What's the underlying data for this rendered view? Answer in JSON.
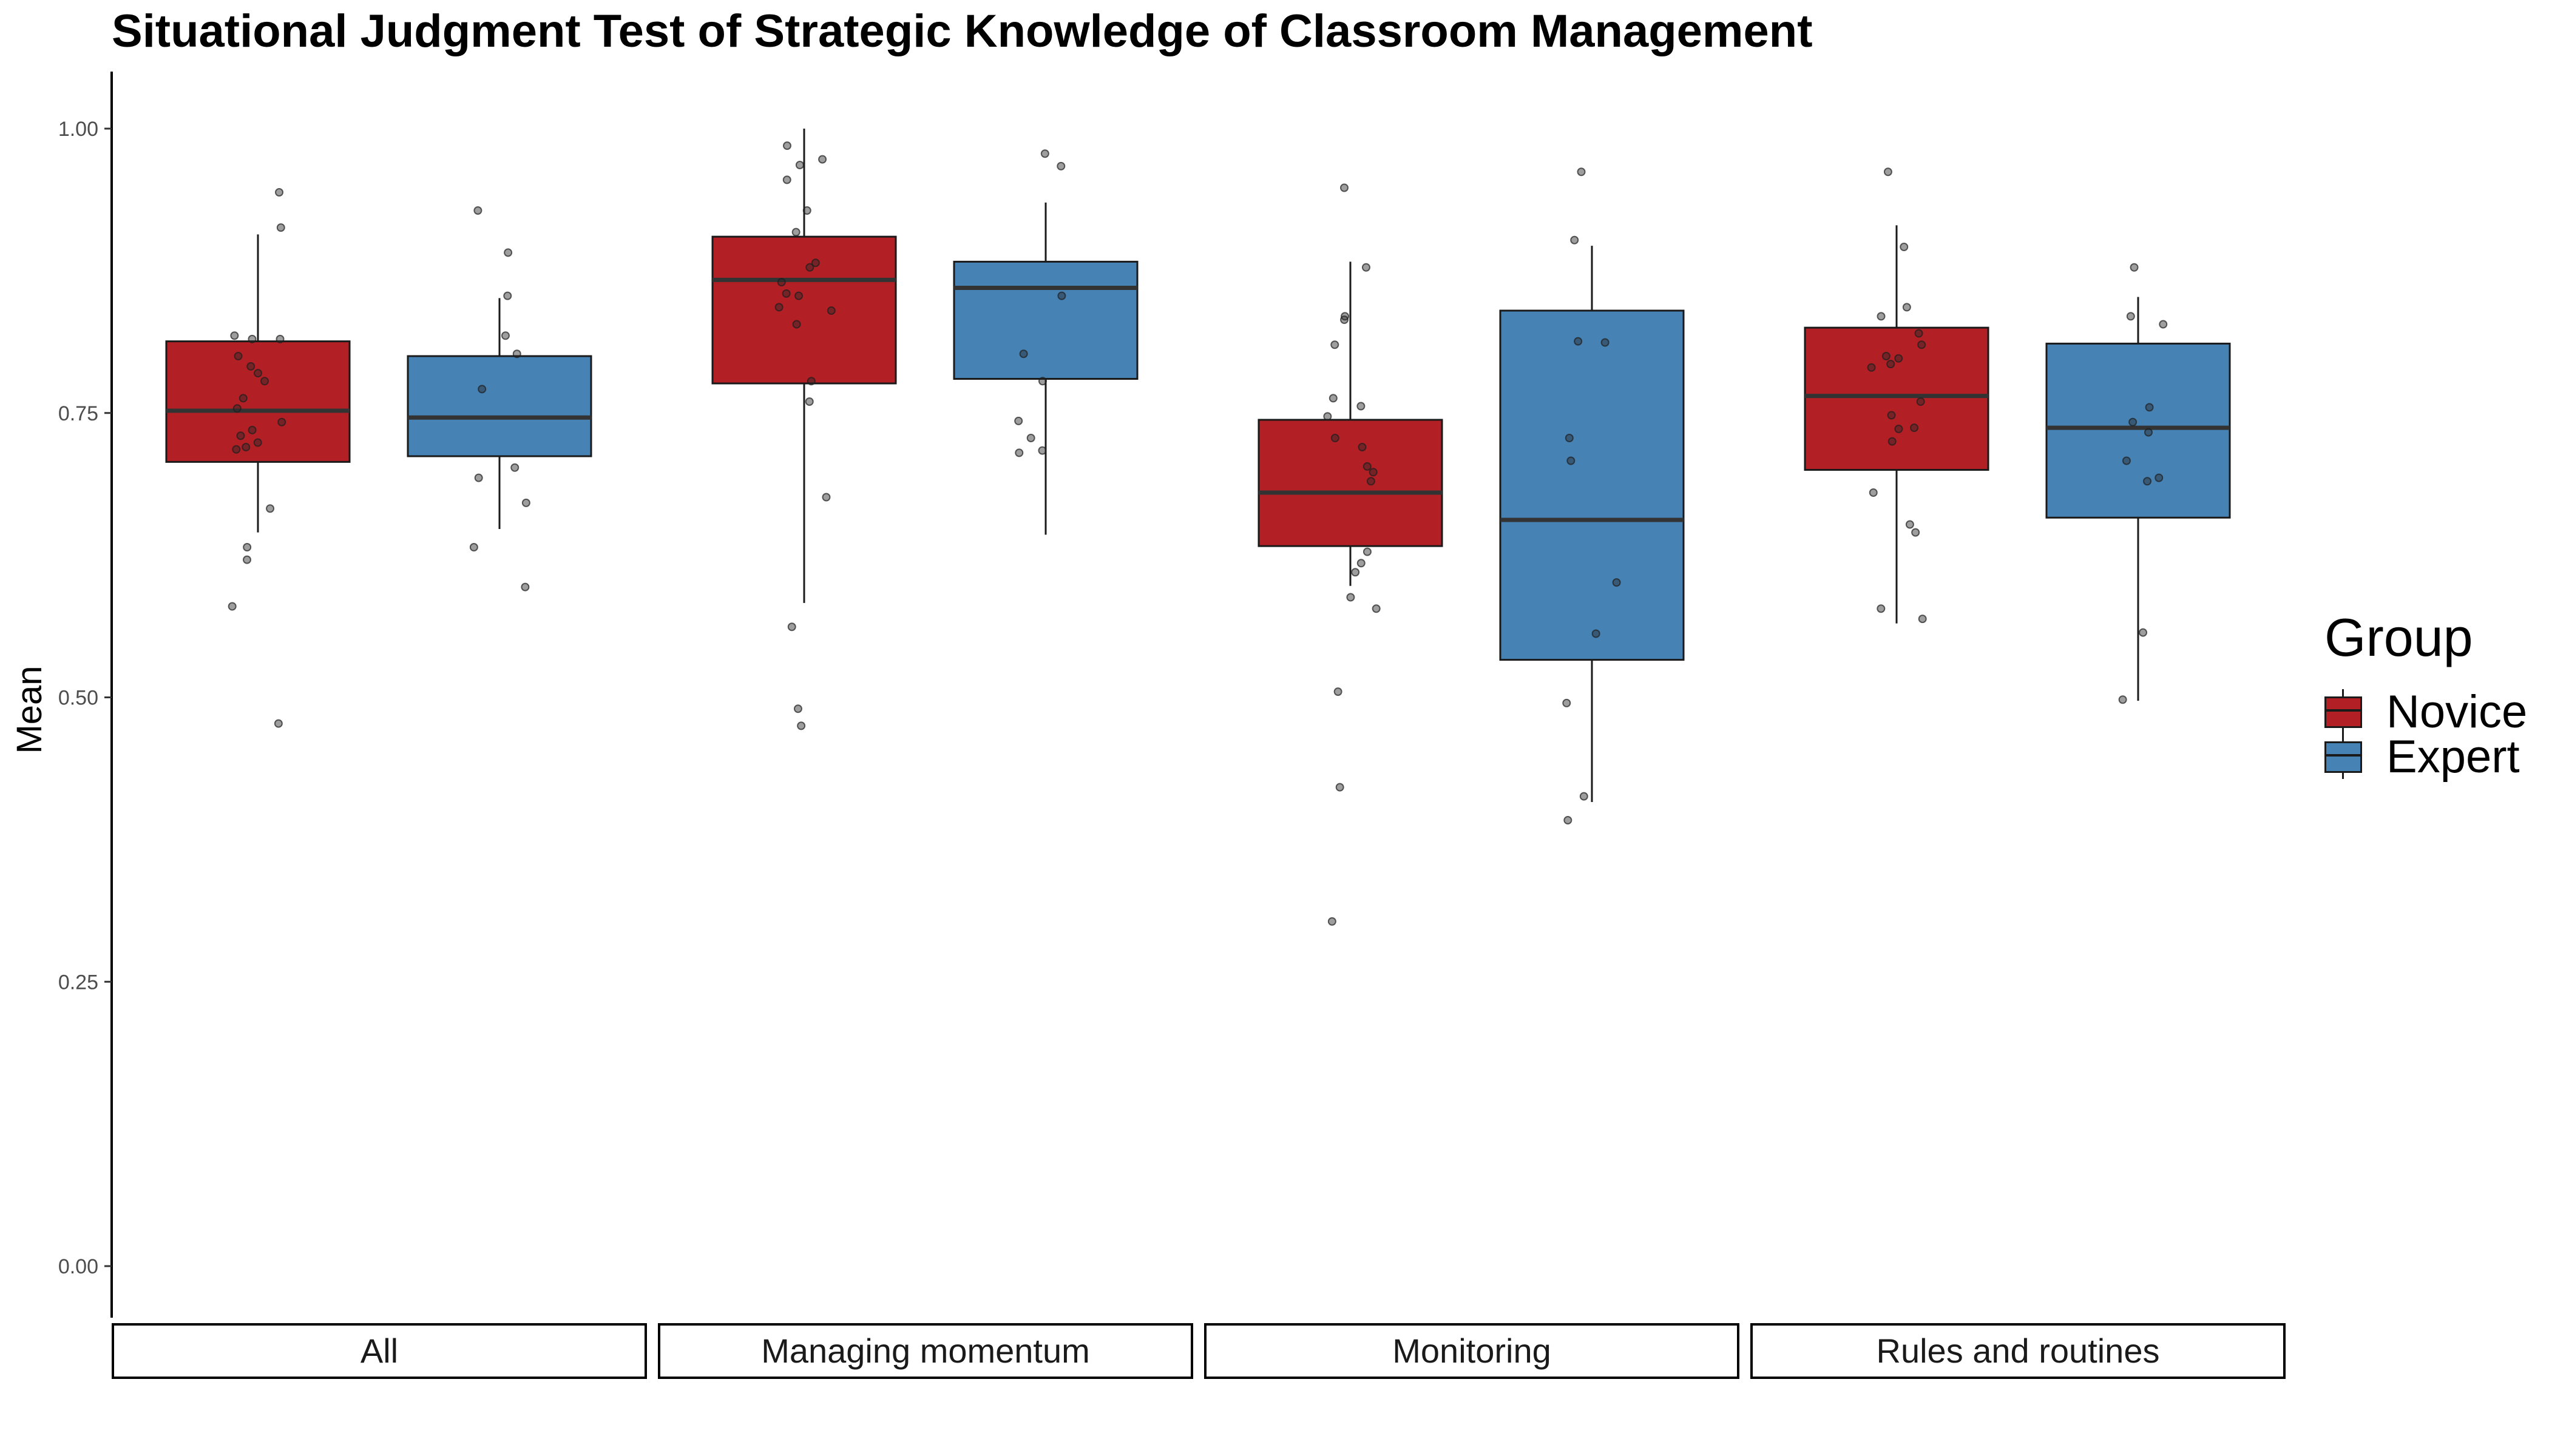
{
  "chart_data": {
    "type": "boxplot",
    "title": "Situational Judgment Test of Strategic Knowledge of Classroom Management",
    "ylabel": "Mean",
    "xlabel": "",
    "ylim": [
      -0.05,
      1.05
    ],
    "yticks": [
      0.0,
      0.25,
      0.5,
      0.75,
      1.0
    ],
    "ytick_labels": [
      "0.00",
      "0.25",
      "0.50",
      "0.75",
      "1.00"
    ],
    "panels": [
      "All",
      "Managing momentum",
      "Monitoring",
      "Rules and routines"
    ],
    "legend": {
      "title": "Group",
      "position": "right",
      "items": [
        {
          "name": "Novice",
          "color": "#B22025"
        },
        {
          "name": "Expert",
          "color": "#4682B4"
        }
      ]
    },
    "series": [
      {
        "name": "Novice",
        "color": "#B22025",
        "boxes": [
          {
            "panel": "All",
            "min": 0.645,
            "q1": 0.707,
            "median": 0.752,
            "q3": 0.813,
            "max": 0.907,
            "points": [
              0.944,
              0.913,
              0.818,
              0.815,
              0.815,
              0.8,
              0.791,
              0.785,
              0.778,
              0.763,
              0.754,
              0.742,
              0.735,
              0.73,
              0.724,
              0.72,
              0.718,
              0.666,
              0.632,
              0.621,
              0.58,
              0.477
            ]
          },
          {
            "panel": "Managing momentum",
            "min": 0.583,
            "q1": 0.776,
            "median": 0.867,
            "q3": 0.905,
            "max": 1.0,
            "points": [
              0.985,
              0.973,
              0.968,
              0.955,
              0.928,
              0.909,
              0.882,
              0.878,
              0.865,
              0.855,
              0.853,
              0.843,
              0.84,
              0.828,
              0.778,
              0.76,
              0.676,
              0.562,
              0.49,
              0.475
            ]
          },
          {
            "panel": "Monitoring",
            "min": 0.598,
            "q1": 0.633,
            "median": 0.68,
            "q3": 0.744,
            "max": 0.883,
            "points": [
              0.948,
              0.878,
              0.835,
              0.832,
              0.81,
              0.763,
              0.756,
              0.747,
              0.728,
              0.72,
              0.703,
              0.698,
              0.69,
              0.628,
              0.618,
              0.61,
              0.588,
              0.578,
              0.505,
              0.421,
              0.303
            ]
          },
          {
            "panel": "Rules and routines",
            "min": 0.565,
            "q1": 0.7,
            "median": 0.765,
            "q3": 0.825,
            "max": 0.915,
            "points": [
              0.962,
              0.896,
              0.843,
              0.835,
              0.82,
              0.81,
              0.8,
              0.798,
              0.793,
              0.79,
              0.76,
              0.748,
              0.737,
              0.736,
              0.725,
              0.68,
              0.652,
              0.645,
              0.578,
              0.569
            ]
          }
        ]
      },
      {
        "name": "Expert",
        "color": "#4682B4",
        "boxes": [
          {
            "panel": "All",
            "min": 0.648,
            "q1": 0.712,
            "median": 0.746,
            "q3": 0.8,
            "max": 0.851,
            "points": [
              0.928,
              0.891,
              0.853,
              0.818,
              0.802,
              0.771,
              0.702,
              0.693,
              0.671,
              0.632,
              0.597
            ]
          },
          {
            "panel": "Managing momentum",
            "min": 0.643,
            "q1": 0.78,
            "median": 0.86,
            "q3": 0.883,
            "max": 0.935,
            "points": [
              0.978,
              0.967,
              0.853,
              0.802,
              0.778,
              0.743,
              0.728,
              0.717,
              0.715
            ]
          },
          {
            "panel": "Monitoring",
            "min": 0.408,
            "q1": 0.533,
            "median": 0.656,
            "q3": 0.84,
            "max": 0.897,
            "points": [
              0.962,
              0.902,
              0.813,
              0.812,
              0.728,
              0.708,
              0.601,
              0.556,
              0.495,
              0.413,
              0.392
            ]
          },
          {
            "panel": "Rules and routines",
            "min": 0.497,
            "q1": 0.658,
            "median": 0.737,
            "q3": 0.811,
            "max": 0.852,
            "points": [
              0.878,
              0.835,
              0.828,
              0.755,
              0.742,
              0.733,
              0.708,
              0.693,
              0.69,
              0.557,
              0.498
            ]
          }
        ]
      }
    ]
  }
}
